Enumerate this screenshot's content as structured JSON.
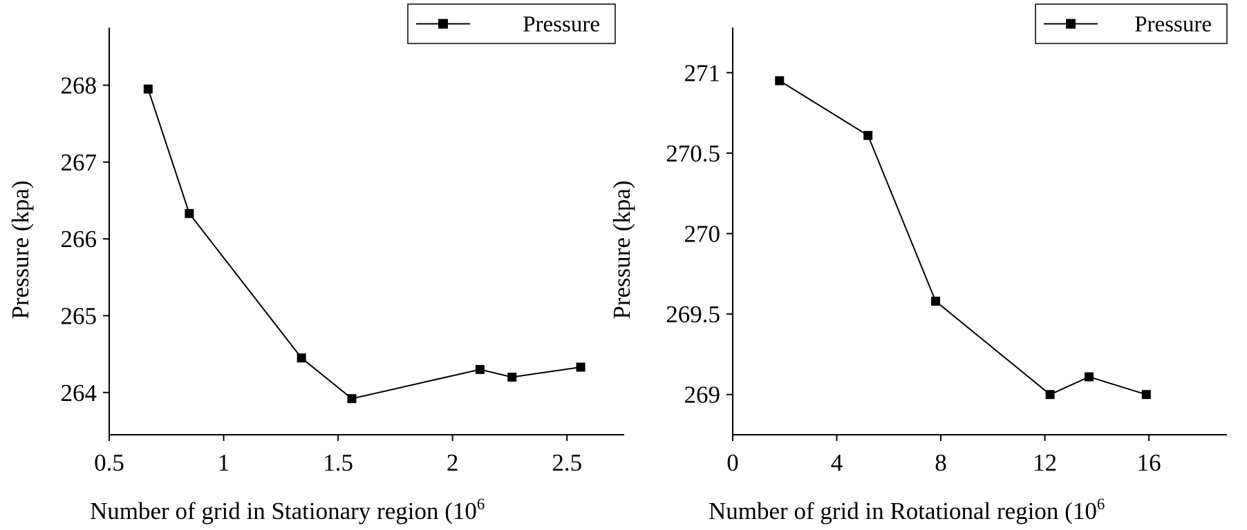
{
  "figure": {
    "panels": [
      "left-stationary",
      "right-rotational"
    ]
  },
  "chart_data": [
    {
      "type": "line",
      "title": "",
      "xlabel": "Number of grid in Stationary region (10",
      "xlabel_sup": "6",
      "ylabel": "Pressure (kpa)",
      "x": [
        0.67,
        0.85,
        1.34,
        1.56,
        2.12,
        2.26,
        2.56
      ],
      "series": [
        {
          "name": "Pressure",
          "values": [
            267.95,
            266.33,
            264.45,
            263.92,
            264.3,
            264.2,
            264.33
          ]
        }
      ],
      "xlim": [
        0.5,
        2.75
      ],
      "ylim": [
        263.45,
        268.75
      ],
      "xticks": [
        0.5,
        1,
        1.5,
        2,
        2.5
      ],
      "xtick_labels": [
        "0.5",
        "1",
        "1.5",
        "2",
        "2.5"
      ],
      "yticks": [
        264,
        265,
        266,
        267,
        268
      ],
      "ytick_labels": [
        "264",
        "265",
        "266",
        "267",
        "268"
      ],
      "legend": {
        "label": "Pressure",
        "position": "top-right"
      },
      "grid": false
    },
    {
      "type": "line",
      "title": "",
      "xlabel": "Number of grid in Rotational region (10",
      "xlabel_sup": "6",
      "ylabel": "Pressure (kpa)",
      "x": [
        1.8,
        5.2,
        7.8,
        12.2,
        13.7,
        15.9
      ],
      "series": [
        {
          "name": "Pressure",
          "values": [
            270.95,
            270.61,
            269.58,
            269.0,
            269.11,
            269.0
          ]
        }
      ],
      "xlim": [
        0,
        19
      ],
      "ylim": [
        268.75,
        271.28
      ],
      "xticks": [
        0,
        4,
        8,
        12,
        16
      ],
      "xtick_labels": [
        "0",
        "4",
        "8",
        "12",
        "16"
      ],
      "yticks": [
        269,
        269.5,
        270,
        270.5,
        271
      ],
      "ytick_labels": [
        "269",
        "269.5",
        "270",
        "270.5",
        "271"
      ],
      "legend": {
        "label": "Pressure",
        "position": "top-right"
      },
      "grid": false
    }
  ]
}
